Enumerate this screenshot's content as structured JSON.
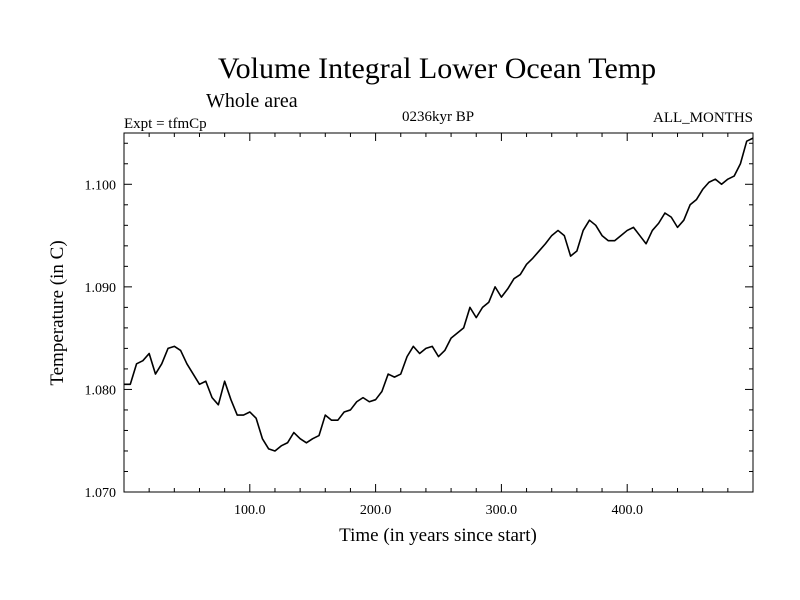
{
  "header": {
    "title": "Volume Integral Lower Ocean Temp",
    "subtitle": "Whole area",
    "experiment": "Expt = tfmCp",
    "period": "0236kyr BP",
    "months": "ALL_MONTHS"
  },
  "chart_data": {
    "type": "line",
    "title": "Volume Integral Lower Ocean Temp",
    "subtitle": "Whole area",
    "xlabel": "Time (in years since start)",
    "ylabel": "Temperature (in C)",
    "xlim": [
      0,
      500
    ],
    "ylim": [
      1.07,
      1.105
    ],
    "xticks": [
      100,
      200,
      300,
      400
    ],
    "xtick_labels": [
      "100.0",
      "200.0",
      "300.0",
      "400.0"
    ],
    "yticks": [
      1.07,
      1.08,
      1.09,
      1.1
    ],
    "ytick_labels": [
      "1.070",
      "1.080",
      "1.090",
      "1.100"
    ],
    "grid": false,
    "series": [
      {
        "color": "#000000",
        "x": [
          0,
          5,
          10,
          15,
          20,
          25,
          30,
          35,
          40,
          45,
          50,
          55,
          60,
          65,
          70,
          75,
          80,
          85,
          90,
          95,
          100,
          105,
          110,
          115,
          120,
          125,
          130,
          135,
          140,
          145,
          150,
          155,
          160,
          165,
          170,
          175,
          180,
          185,
          190,
          195,
          200,
          205,
          210,
          215,
          220,
          225,
          230,
          235,
          240,
          245,
          250,
          255,
          260,
          265,
          270,
          275,
          280,
          285,
          290,
          295,
          300,
          305,
          310,
          315,
          320,
          325,
          330,
          335,
          340,
          345,
          350,
          355,
          360,
          365,
          370,
          375,
          380,
          385,
          390,
          395,
          400,
          405,
          410,
          415,
          420,
          425,
          430,
          435,
          440,
          445,
          450,
          455,
          460,
          465,
          470,
          475,
          480,
          485,
          490,
          495,
          500
        ],
        "values": [
          1.0805,
          1.0805,
          1.0825,
          1.0828,
          1.0835,
          1.0815,
          1.0825,
          1.084,
          1.0842,
          1.0838,
          1.0825,
          1.0815,
          1.0805,
          1.0808,
          1.0792,
          1.0785,
          1.0808,
          1.079,
          1.0775,
          1.0775,
          1.0778,
          1.0772,
          1.0752,
          1.0742,
          1.074,
          1.0745,
          1.0748,
          1.0758,
          1.0752,
          1.0748,
          1.0752,
          1.0755,
          1.0775,
          1.077,
          1.077,
          1.0778,
          1.078,
          1.0788,
          1.0792,
          1.0788,
          1.079,
          1.0798,
          1.0815,
          1.0812,
          1.0815,
          1.0832,
          1.0842,
          1.0835,
          1.084,
          1.0842,
          1.0832,
          1.0838,
          1.085,
          1.0855,
          1.086,
          1.088,
          1.087,
          1.088,
          1.0885,
          1.09,
          1.089,
          1.0898,
          1.0908,
          1.0912,
          1.0922,
          1.0928,
          1.0935,
          1.0942,
          1.095,
          1.0955,
          1.095,
          1.093,
          1.0935,
          1.0955,
          1.0965,
          1.096,
          1.095,
          1.0945,
          1.0945,
          1.095,
          1.0955,
          1.0958,
          1.095,
          1.0942,
          1.0955,
          1.0962,
          1.0972,
          1.0968,
          1.0958,
          1.0965,
          1.098,
          1.0985,
          1.0995,
          1.1002,
          1.1005,
          1.1,
          1.1005,
          1.1008,
          1.102,
          1.1042,
          1.1045
        ]
      }
    ]
  }
}
